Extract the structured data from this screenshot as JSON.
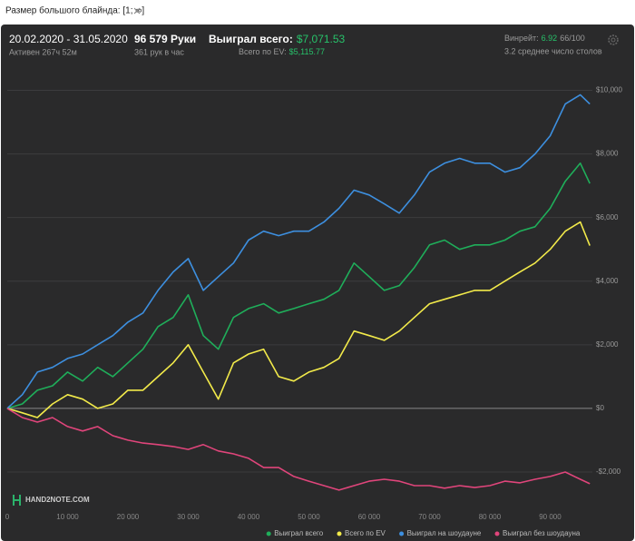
{
  "tab": {
    "label": "Размер большого блайнда: [1; ∞]"
  },
  "header": {
    "date_range": "20.02.2020 - 31.05.2020",
    "active": "Активен 267ч 52м",
    "hands": "96 579 Руки",
    "hands_per_hour": "361 рук в час",
    "won_total_label": "Выиграл всего:",
    "won_total_value": "$7,071.53",
    "ev_label": "Всего по EV:",
    "ev_value": "$5,115.77",
    "winrate_label": "Винрейт:",
    "winrate_value": "6.92",
    "winrate_rest": "66/100",
    "tables": "3.2 среднее число столов"
  },
  "chart_data": {
    "type": "line",
    "watermark": "HAND2NOTE.COM",
    "x": [
      0,
      2500,
      5000,
      7500,
      10000,
      12500,
      15000,
      17500,
      20000,
      22500,
      25000,
      27500,
      30000,
      32500,
      35000,
      37500,
      40000,
      42500,
      45000,
      47500,
      50000,
      52500,
      55000,
      57500,
      60000,
      62500,
      65000,
      67500,
      70000,
      72500,
      75000,
      77500,
      80000,
      82500,
      85000,
      87500,
      90000,
      92500,
      95000,
      96579
    ],
    "series": [
      {
        "name": "Выиграл всего",
        "color": "#1fae5a",
        "values": [
          0,
          140,
          570,
          710,
          1140,
          860,
          1290,
          1000,
          1430,
          1860,
          2570,
          2860,
          3570,
          2290,
          1860,
          2860,
          3140,
          3290,
          3000,
          3140,
          3290,
          3430,
          3710,
          4570,
          4140,
          3710,
          3860,
          4430,
          5140,
          5290,
          5000,
          5140,
          5140,
          5290,
          5570,
          5710,
          6290,
          7140,
          7710,
          7071.53
        ]
      },
      {
        "name": "Всего по EV",
        "color": "#f2ea4a",
        "values": [
          0,
          -140,
          -290,
          140,
          430,
          290,
          0,
          140,
          570,
          570,
          1000,
          1430,
          2000,
          1140,
          290,
          1430,
          1710,
          1860,
          1000,
          860,
          1140,
          1290,
          1570,
          2430,
          2290,
          2140,
          2430,
          2860,
          3290,
          3430,
          3570,
          3710,
          3710,
          4000,
          4290,
          4570,
          5000,
          5570,
          5860,
          5115.77
        ]
      },
      {
        "name": "Выиграл на шоудауне",
        "color": "#3d8fdf",
        "values": [
          0,
          430,
          1140,
          1290,
          1570,
          1710,
          2000,
          2290,
          2710,
          3000,
          3710,
          4290,
          4710,
          3710,
          4140,
          4570,
          5290,
          5570,
          5430,
          5570,
          5570,
          5860,
          6290,
          6860,
          6710,
          6430,
          6140,
          6710,
          7430,
          7710,
          7860,
          7710,
          7710,
          7430,
          7570,
          8000,
          8570,
          9570,
          9860,
          9570
        ]
      },
      {
        "name": "Выиграл без шоудауна",
        "color": "#e0457b",
        "values": [
          0,
          -290,
          -430,
          -290,
          -570,
          -710,
          -570,
          -860,
          -1000,
          -1090,
          -1140,
          -1200,
          -1290,
          -1140,
          -1340,
          -1430,
          -1570,
          -1860,
          -1860,
          -2140,
          -2290,
          -2430,
          -2570,
          -2430,
          -2290,
          -2230,
          -2290,
          -2430,
          -2430,
          -2510,
          -2430,
          -2490,
          -2430,
          -2290,
          -2340,
          -2230,
          -2140,
          -2000,
          -2230,
          -2370
        ]
      }
    ],
    "xlim": [
      0,
      97000
    ],
    "xticks": [
      0,
      {
        "value": 10000,
        "label": "10 000"
      },
      {
        "value": 20000,
        "label": "20 000"
      },
      {
        "value": 30000,
        "label": "30 000"
      },
      {
        "value": 40000,
        "label": "40 000"
      },
      {
        "value": 50000,
        "label": "50 000"
      },
      {
        "value": 60000,
        "label": "60 000"
      },
      {
        "value": 70000,
        "label": "70 000"
      },
      {
        "value": 80000,
        "label": "80 000"
      },
      {
        "value": 90000,
        "label": "90 000"
      }
    ],
    "ylim": [
      -3000,
      10500
    ],
    "yticks": [
      {
        "value": -2000,
        "label": "-$2,000"
      },
      {
        "value": 0,
        "label": "$0"
      },
      {
        "value": 2000,
        "label": "$2,000"
      },
      {
        "value": 4000,
        "label": "$4,000"
      },
      {
        "value": 6000,
        "label": "$6,000"
      },
      {
        "value": 8000,
        "label": "$8,000"
      },
      {
        "value": 10000,
        "label": "$10,000"
      }
    ],
    "grid": true,
    "legend": "bottom-right"
  }
}
